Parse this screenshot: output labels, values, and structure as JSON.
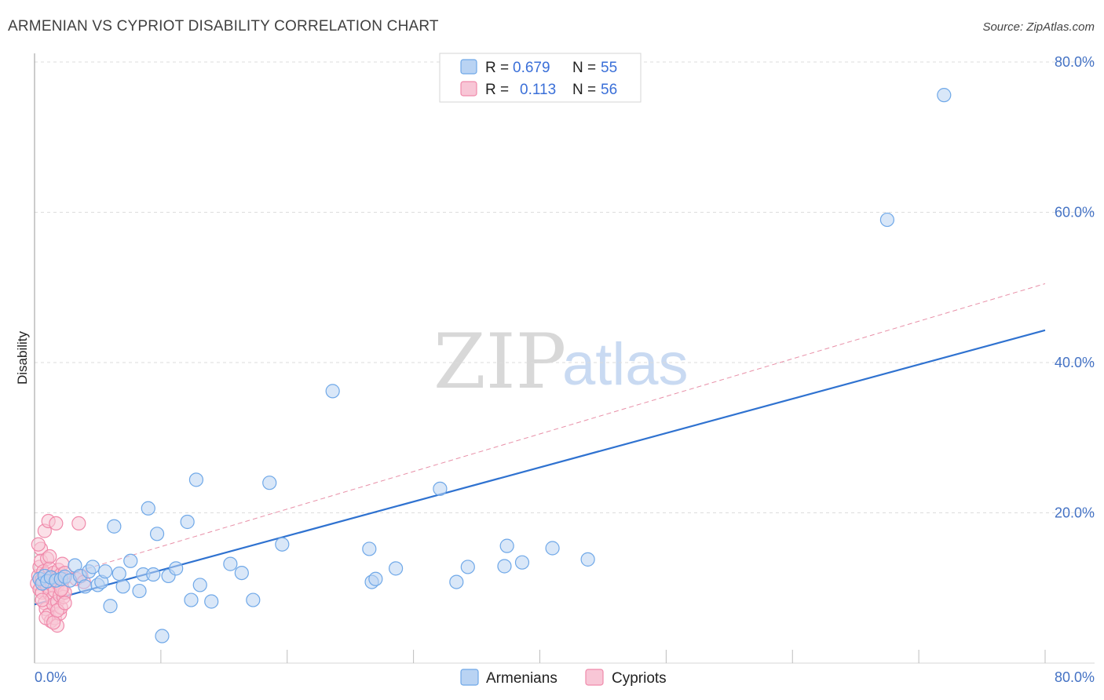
{
  "chart_data": {
    "type": "scatter",
    "title": "ARMENIAN VS CYPRIOT DISABILITY CORRELATION CHART",
    "source": "Source: ZipAtlas.com",
    "ylabel": "Disability",
    "xlabel": "",
    "xlim": [
      0,
      80
    ],
    "ylim": [
      0,
      80
    ],
    "x_tick_labels": [
      "0.0%",
      "80.0%"
    ],
    "y_tick_labels": [
      "20.0%",
      "40.0%",
      "60.0%",
      "80.0%"
    ],
    "y_ticks": [
      20,
      40,
      60,
      80
    ],
    "grid": true,
    "watermark": {
      "zip": "ZIP",
      "atlas": "atlas"
    },
    "legend_top": [
      {
        "r_label": "R =",
        "r_value": "0.679",
        "n_label": "N =",
        "n_value": "55"
      },
      {
        "r_label": "R =",
        "r_value": "0.113",
        "n_label": "N =",
        "n_value": "56"
      }
    ],
    "series": [
      {
        "name": "Armenians",
        "color": "#6fa8e8",
        "fill": "#b9d3f3",
        "line_color": "#2f72d0",
        "trend": {
          "x0": 0,
          "y0": 7.8,
          "x1": 80,
          "y1": 44.3,
          "style": "solid"
        },
        "points": [
          [
            0.4,
            11.2
          ],
          [
            0.6,
            10.6
          ],
          [
            0.8,
            11.6
          ],
          [
            1.0,
            10.9
          ],
          [
            1.3,
            11.4
          ],
          [
            1.7,
            11.0
          ],
          [
            2.1,
            11.2
          ],
          [
            2.4,
            11.5
          ],
          [
            2.8,
            11.0
          ],
          [
            3.2,
            13.0
          ],
          [
            3.6,
            11.6
          ],
          [
            4.0,
            10.2
          ],
          [
            4.3,
            12.2
          ],
          [
            4.6,
            12.8
          ],
          [
            5.0,
            10.4
          ],
          [
            5.3,
            10.8
          ],
          [
            5.6,
            12.2
          ],
          [
            6.0,
            7.6
          ],
          [
            6.3,
            18.2
          ],
          [
            6.7,
            11.9
          ],
          [
            7.0,
            10.2
          ],
          [
            7.6,
            13.6
          ],
          [
            8.3,
            9.6
          ],
          [
            8.6,
            11.8
          ],
          [
            9.0,
            20.6
          ],
          [
            9.4,
            11.8
          ],
          [
            9.7,
            17.2
          ],
          [
            10.1,
            3.6
          ],
          [
            10.6,
            11.6
          ],
          [
            11.2,
            12.6
          ],
          [
            12.1,
            18.8
          ],
          [
            12.4,
            8.4
          ],
          [
            12.8,
            24.4
          ],
          [
            13.1,
            10.4
          ],
          [
            14.0,
            8.2
          ],
          [
            15.5,
            13.2
          ],
          [
            16.4,
            12.0
          ],
          [
            17.3,
            8.4
          ],
          [
            18.6,
            24.0
          ],
          [
            19.6,
            15.8
          ],
          [
            23.6,
            36.2
          ],
          [
            26.5,
            15.2
          ],
          [
            26.7,
            10.8
          ],
          [
            27.0,
            11.2
          ],
          [
            28.6,
            12.6
          ],
          [
            32.1,
            23.2
          ],
          [
            33.4,
            10.8
          ],
          [
            34.3,
            12.8
          ],
          [
            37.2,
            12.9
          ],
          [
            37.4,
            15.6
          ],
          [
            38.6,
            13.4
          ],
          [
            41.0,
            15.3
          ],
          [
            43.8,
            13.8
          ],
          [
            67.5,
            59.0
          ],
          [
            72.0,
            75.6
          ]
        ]
      },
      {
        "name": "Cypriots",
        "color": "#f08aab",
        "fill": "#f8c6d6",
        "line_color": "#e890a8",
        "trend": {
          "x0": 0,
          "y0": 10.5,
          "x1": 80,
          "y1": 50.5,
          "style": "dashed"
        },
        "points": [
          [
            0.2,
            10.6
          ],
          [
            0.3,
            11.6
          ],
          [
            0.4,
            9.8
          ],
          [
            0.4,
            12.8
          ],
          [
            0.5,
            15.2
          ],
          [
            0.5,
            13.6
          ],
          [
            0.6,
            11.2
          ],
          [
            0.6,
            9.4
          ],
          [
            0.7,
            10.8
          ],
          [
            0.7,
            12.2
          ],
          [
            0.8,
            17.6
          ],
          [
            0.8,
            8.0
          ],
          [
            0.9,
            7.2
          ],
          [
            0.9,
            11.9
          ],
          [
            1.0,
            13.9
          ],
          [
            1.0,
            10.2
          ],
          [
            1.1,
            6.4
          ],
          [
            1.1,
            18.9
          ],
          [
            1.2,
            9.2
          ],
          [
            1.2,
            12.6
          ],
          [
            1.3,
            5.6
          ],
          [
            1.3,
            11.0
          ],
          [
            1.4,
            8.6
          ],
          [
            1.4,
            10.4
          ],
          [
            1.5,
            12.0
          ],
          [
            1.5,
            7.8
          ],
          [
            1.6,
            6.0
          ],
          [
            1.6,
            9.6
          ],
          [
            1.7,
            11.4
          ],
          [
            1.7,
            18.6
          ],
          [
            1.8,
            5.0
          ],
          [
            1.8,
            8.2
          ],
          [
            1.9,
            10.6
          ],
          [
            1.9,
            12.4
          ],
          [
            2.0,
            9.0
          ],
          [
            2.0,
            6.6
          ],
          [
            2.1,
            11.8
          ],
          [
            2.1,
            7.4
          ],
          [
            2.2,
            10.0
          ],
          [
            2.2,
            13.2
          ],
          [
            2.3,
            8.8
          ],
          [
            2.3,
            11.2
          ],
          [
            2.4,
            9.4
          ],
          [
            2.4,
            12.0
          ],
          [
            0.3,
            15.8
          ],
          [
            0.6,
            8.4
          ],
          [
            0.9,
            6.0
          ],
          [
            1.2,
            14.2
          ],
          [
            1.5,
            5.4
          ],
          [
            1.8,
            7.0
          ],
          [
            2.1,
            9.8
          ],
          [
            2.4,
            8.0
          ],
          [
            3.3,
            11.2
          ],
          [
            3.5,
            18.6
          ],
          [
            3.7,
            11.6
          ],
          [
            3.9,
            10.8
          ]
        ]
      }
    ]
  }
}
